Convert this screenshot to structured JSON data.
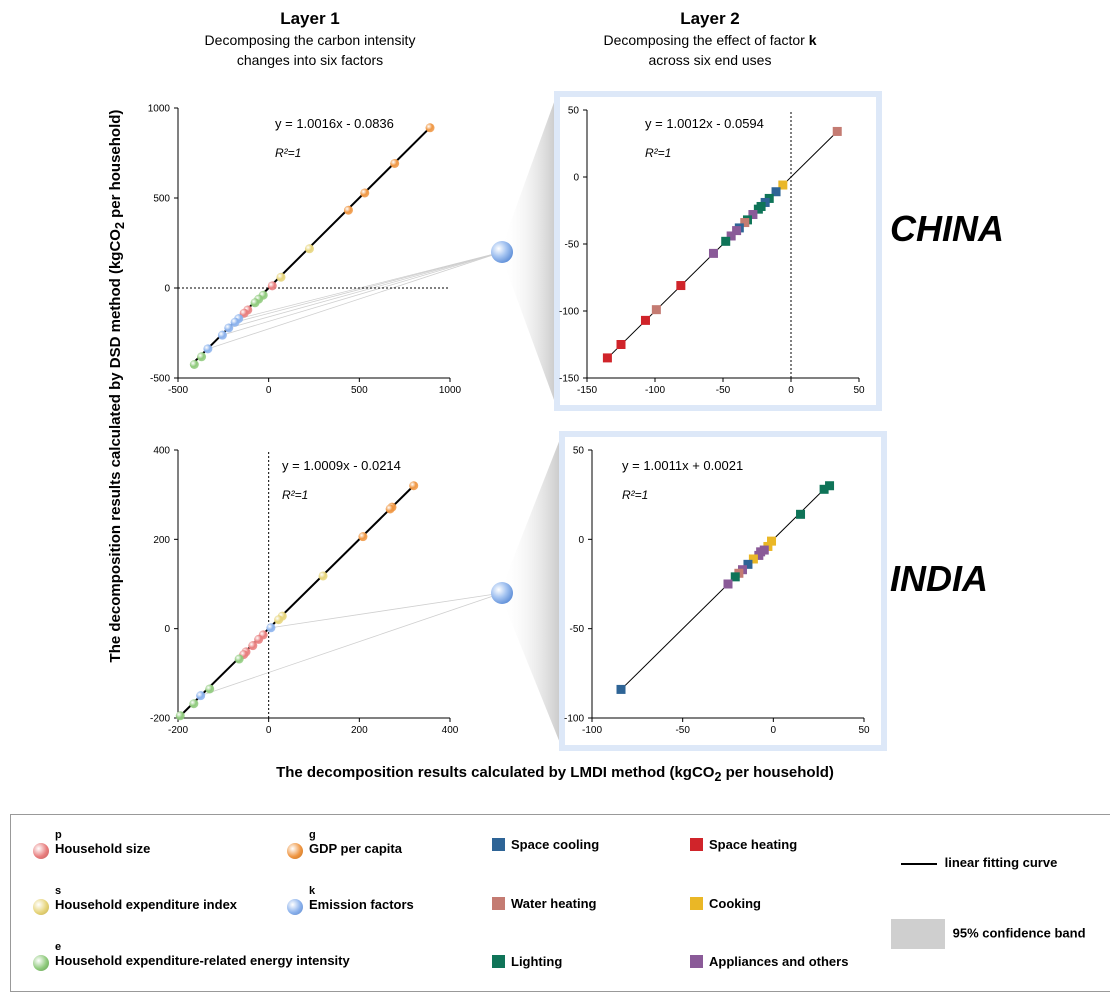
{
  "layer1": {
    "title": "Layer 1",
    "subtitle_line1": "Decomposing the carbon intensity",
    "subtitle_line2": "changes into six factors"
  },
  "layer2": {
    "title": "Layer 2",
    "subtitle_pre": "Decomposing the effect of factor ",
    "subtitle_bold": "k",
    "subtitle_line2": "across six end uses"
  },
  "countries": {
    "china": "CHINA",
    "india": "INDIA"
  },
  "axis_labels": {
    "y_pre": "The decomposition results calculated by DSD method (kgCO",
    "y_sub": "2",
    "y_post": " per household)",
    "x_pre": "The decomposition results calculated by LMDI method (kgCO",
    "x_sub": "2",
    "x_post": " per household)"
  },
  "colors": {
    "p": "#e87e7e",
    "g": "#ef9642",
    "s": "#e6d47a",
    "k": "#8ab1ec",
    "e": "#8fca7c",
    "space_cooling": "#2e6496",
    "space_heating": "#d0242a",
    "water_heating": "#c47b72",
    "cooking": "#eab726",
    "lighting": "#0f7458",
    "appliances": "#8a5a98",
    "panel_border": "#dde8f8",
    "fit_line": "#000000"
  },
  "chart_data": [
    {
      "type": "scatter",
      "id": "china_layer1",
      "xlim": [
        -500,
        1000
      ],
      "ylim": [
        -500,
        1000
      ],
      "xticks": [
        -500,
        0,
        500,
        1000
      ],
      "yticks": [
        -500,
        0,
        500,
        1000
      ],
      "equation": "y = 1.0016x - 0.0836",
      "r2": "R²=1",
      "fit": {
        "slope": 1.0016,
        "intercept": -0.0836
      },
      "points": [
        {
          "f": "g",
          "x": 890,
          "y": 890
        },
        {
          "f": "g",
          "x": 695,
          "y": 692
        },
        {
          "f": "g",
          "x": 530,
          "y": 528
        },
        {
          "f": "g",
          "x": 440,
          "y": 432
        },
        {
          "f": "s",
          "x": 225,
          "y": 218
        },
        {
          "f": "s",
          "x": 68,
          "y": 60
        },
        {
          "f": "p",
          "x": 20,
          "y": 12
        },
        {
          "f": "e",
          "x": -30,
          "y": -40
        },
        {
          "f": "e",
          "x": -55,
          "y": -62
        },
        {
          "f": "e",
          "x": -75,
          "y": -82
        },
        {
          "f": "p",
          "x": -115,
          "y": -122
        },
        {
          "f": "p",
          "x": -135,
          "y": -140
        },
        {
          "f": "k",
          "x": -165,
          "y": -170
        },
        {
          "f": "k",
          "x": -185,
          "y": -190
        },
        {
          "f": "k",
          "x": -220,
          "y": -222
        },
        {
          "f": "k",
          "x": -255,
          "y": -262
        },
        {
          "f": "k",
          "x": -335,
          "y": -338
        },
        {
          "f": "e",
          "x": -370,
          "y": -382
        },
        {
          "f": "e",
          "x": -410,
          "y": -425
        }
      ]
    },
    {
      "type": "scatter",
      "id": "china_layer2",
      "xlim": [
        -150,
        50
      ],
      "ylim": [
        -150,
        50
      ],
      "xticks": [
        -150,
        -100,
        -50,
        0,
        50
      ],
      "yticks": [
        -150,
        -100,
        -50,
        0,
        50
      ],
      "equation": "y = 1.0012x - 0.0594",
      "r2": "R²=1",
      "fit": {
        "slope": 1.0012,
        "intercept": -0.0594
      },
      "points": [
        {
          "f": "water_heating",
          "x": 34,
          "y": 34
        },
        {
          "f": "cooking",
          "x": -6,
          "y": -6
        },
        {
          "f": "space_cooling",
          "x": -11,
          "y": -11
        },
        {
          "f": "lighting",
          "x": -16,
          "y": -16
        },
        {
          "f": "space_cooling",
          "x": -19,
          "y": -19
        },
        {
          "f": "lighting",
          "x": -22,
          "y": -22
        },
        {
          "f": "lighting",
          "x": -24,
          "y": -24
        },
        {
          "f": "appliances",
          "x": -28,
          "y": -28
        },
        {
          "f": "lighting",
          "x": -32,
          "y": -32
        },
        {
          "f": "water_heating",
          "x": -34,
          "y": -34
        },
        {
          "f": "space_cooling",
          "x": -38,
          "y": -38
        },
        {
          "f": "appliances",
          "x": -40,
          "y": -40
        },
        {
          "f": "appliances",
          "x": -44,
          "y": -44
        },
        {
          "f": "lighting",
          "x": -48,
          "y": -48
        },
        {
          "f": "appliances",
          "x": -57,
          "y": -57
        },
        {
          "f": "space_heating",
          "x": -81,
          "y": -81
        },
        {
          "f": "water_heating",
          "x": -99,
          "y": -99
        },
        {
          "f": "space_heating",
          "x": -107,
          "y": -107
        },
        {
          "f": "space_heating",
          "x": -125,
          "y": -125
        },
        {
          "f": "space_heating",
          "x": -135,
          "y": -135
        }
      ]
    },
    {
      "type": "scatter",
      "id": "india_layer1",
      "xlim": [
        -200,
        400
      ],
      "ylim": [
        -200,
        400
      ],
      "xticks": [
        -200,
        0,
        200,
        400
      ],
      "yticks": [
        -200,
        0,
        200,
        400
      ],
      "equation": "y = 1.0009x - 0.0214",
      "r2": "R²=1",
      "fit": {
        "slope": 1.0009,
        "intercept": -0.0214
      },
      "points": [
        {
          "f": "g",
          "x": 320,
          "y": 320
        },
        {
          "f": "g",
          "x": 272,
          "y": 272
        },
        {
          "f": "g",
          "x": 268,
          "y": 268
        },
        {
          "f": "g",
          "x": 208,
          "y": 206
        },
        {
          "f": "s",
          "x": 120,
          "y": 118
        },
        {
          "f": "s",
          "x": 30,
          "y": 28
        },
        {
          "f": "s",
          "x": 22,
          "y": 20
        },
        {
          "f": "k",
          "x": 5,
          "y": 2
        },
        {
          "f": "p",
          "x": -12,
          "y": -14
        },
        {
          "f": "p",
          "x": -22,
          "y": -24
        },
        {
          "f": "p",
          "x": -35,
          "y": -38
        },
        {
          "f": "p",
          "x": -50,
          "y": -52
        },
        {
          "f": "p",
          "x": -55,
          "y": -58
        },
        {
          "f": "e",
          "x": -65,
          "y": -68
        },
        {
          "f": "e",
          "x": -130,
          "y": -135
        },
        {
          "f": "k",
          "x": -150,
          "y": -150
        },
        {
          "f": "e",
          "x": -165,
          "y": -168
        },
        {
          "f": "e",
          "x": -195,
          "y": -195
        }
      ]
    },
    {
      "type": "scatter",
      "id": "india_layer2",
      "xlim": [
        -100,
        50
      ],
      "ylim": [
        -100,
        50
      ],
      "xticks": [
        -100,
        -50,
        0,
        50
      ],
      "yticks": [
        -100,
        -50,
        0,
        50
      ],
      "equation": "y = 1.0011x + 0.0021",
      "r2": "R²=1",
      "fit": {
        "slope": 1.0011,
        "intercept": 0.0021
      },
      "points": [
        {
          "f": "lighting",
          "x": 31,
          "y": 30
        },
        {
          "f": "lighting",
          "x": 28,
          "y": 28
        },
        {
          "f": "lighting",
          "x": 15,
          "y": 14
        },
        {
          "f": "cooking",
          "x": -1,
          "y": -1
        },
        {
          "f": "cooking",
          "x": -3,
          "y": -4
        },
        {
          "f": "appliances",
          "x": -5,
          "y": -6
        },
        {
          "f": "appliances",
          "x": -7,
          "y": -7
        },
        {
          "f": "appliances",
          "x": -8,
          "y": -9
        },
        {
          "f": "cooking",
          "x": -11,
          "y": -11
        },
        {
          "f": "space_cooling",
          "x": -14,
          "y": -14
        },
        {
          "f": "appliances",
          "x": -17,
          "y": -17
        },
        {
          "f": "water_heating",
          "x": -19,
          "y": -19
        },
        {
          "f": "lighting",
          "x": -21,
          "y": -21
        },
        {
          "f": "appliances",
          "x": -25,
          "y": -25
        },
        {
          "f": "space_cooling",
          "x": -84,
          "y": -84
        }
      ]
    }
  ],
  "legend": {
    "factors": [
      {
        "letter": "p",
        "label": "Household size",
        "key": "p"
      },
      {
        "letter": "g",
        "label": "GDP per capita",
        "key": "g"
      },
      {
        "letter": "s",
        "label": "Household expenditure index",
        "key": "s"
      },
      {
        "letter": "k",
        "label": "Emission factors",
        "key": "k"
      },
      {
        "letter": "e",
        "label": "Household expenditure-related energy intensity",
        "key": "e"
      }
    ],
    "end_uses": [
      {
        "label": "Space cooling",
        "key": "space_cooling"
      },
      {
        "label": "Space heating",
        "key": "space_heating"
      },
      {
        "label": "Water heating",
        "key": "water_heating"
      },
      {
        "label": "Cooking",
        "key": "cooking"
      },
      {
        "label": "Lighting",
        "key": "lighting"
      },
      {
        "label": "Appliances and others",
        "key": "appliances"
      }
    ],
    "fit_label": "linear fitting curve",
    "band_label": "95% confidence band"
  }
}
